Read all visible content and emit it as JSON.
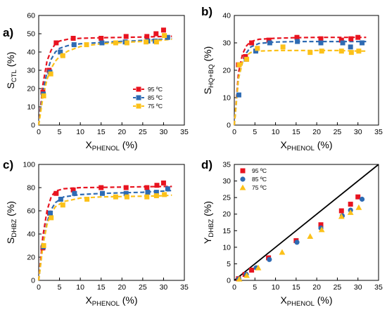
{
  "colors": {
    "t95": "#e8131f",
    "t85": "#2e6bb3",
    "t75": "#fcc119"
  },
  "chart_data": [
    {
      "type": "scatter",
      "panel": "a)",
      "ylabel_main": "S",
      "ylabel_sub": "CTL",
      "ylabel_unit": " (%)",
      "xlabel_main": "X",
      "xlabel_sub": "PHENOL",
      "xlabel_unit": " (%)",
      "xlim": [
        0,
        35
      ],
      "ylim": [
        0,
        60
      ],
      "xticks": [
        0,
        5,
        10,
        15,
        20,
        25,
        30,
        35
      ],
      "yticks": [
        0,
        10,
        20,
        30,
        40,
        50,
        60
      ],
      "legend": {
        "placement": "bottom-right"
      },
      "series": [
        {
          "name": "95 ºC",
          "color": "t95",
          "marker": "square",
          "points": [
            [
              1.0,
              18
            ],
            [
              2.5,
              30
            ],
            [
              4.2,
              45
            ],
            [
              8.3,
              47.5
            ],
            [
              15.0,
              47.5
            ],
            [
              21.0,
              48.5
            ],
            [
              26.0,
              48.5
            ],
            [
              28.2,
              50
            ],
            [
              30.0,
              52
            ]
          ],
          "fit": [
            [
              0,
              0
            ],
            [
              1,
              22
            ],
            [
              2,
              35
            ],
            [
              3,
              41
            ],
            [
              4,
              44.5
            ],
            [
              5,
              46
            ],
            [
              7,
              47
            ],
            [
              10,
              47.5
            ],
            [
              15,
              47.8
            ],
            [
              20,
              48
            ],
            [
              25,
              48.2
            ],
            [
              30,
              48.5
            ],
            [
              32,
              48.6
            ]
          ]
        },
        {
          "name": "85 ºC",
          "color": "t85",
          "marker": "square",
          "points": [
            [
              1.1,
              17
            ],
            [
              2.7,
              29
            ],
            [
              5.2,
              40
            ],
            [
              8.5,
              44
            ],
            [
              15.2,
              45
            ],
            [
              20.8,
              45.5
            ],
            [
              26.2,
              46
            ],
            [
              28.0,
              46
            ],
            [
              31.0,
              48
            ]
          ],
          "fit": [
            [
              0,
              0
            ],
            [
              1,
              18
            ],
            [
              2,
              29
            ],
            [
              3,
              36
            ],
            [
              4,
              40
            ],
            [
              5,
              42
            ],
            [
              7,
              43.5
            ],
            [
              10,
              44.5
            ],
            [
              15,
              45.2
            ],
            [
              20,
              45.8
            ],
            [
              25,
              46.3
            ],
            [
              30,
              47
            ],
            [
              32,
              47.5
            ]
          ]
        },
        {
          "name": "75 ºC",
          "color": "t75",
          "marker": "square",
          "points": [
            [
              1.2,
              16
            ],
            [
              2.9,
              28
            ],
            [
              5.8,
              38
            ],
            [
              11.5,
              44
            ],
            [
              18.5,
              45
            ],
            [
              21.2,
              45
            ],
            [
              25.8,
              45.5
            ],
            [
              28.3,
              45.5
            ],
            [
              30.2,
              49
            ]
          ],
          "fit": [
            [
              0,
              0
            ],
            [
              1,
              15
            ],
            [
              2,
              25
            ],
            [
              3,
              31
            ],
            [
              4,
              35
            ],
            [
              5,
              37.5
            ],
            [
              7,
              40.5
            ],
            [
              10,
              43
            ],
            [
              15,
              44.5
            ],
            [
              20,
              45.2
            ],
            [
              25,
              45.8
            ],
            [
              30,
              46.5
            ],
            [
              32,
              47
            ]
          ]
        }
      ]
    },
    {
      "type": "scatter",
      "panel": "b)",
      "ylabel_main": "S",
      "ylabel_sub": "HQ+BQ",
      "ylabel_unit": " (%)",
      "xlabel_main": "X",
      "xlabel_sub": "PHENOL",
      "xlabel_unit": " (%)",
      "xlim": [
        0,
        35
      ],
      "ylim": [
        0,
        40
      ],
      "xticks": [
        0,
        5,
        10,
        15,
        20,
        25,
        30,
        35
      ],
      "yticks": [
        0,
        10,
        20,
        30,
        40
      ],
      "series": [
        {
          "name": "95 ºC",
          "color": "t95",
          "marker": "square",
          "points": [
            [
              1.0,
              22
            ],
            [
              2.7,
              25
            ],
            [
              4.2,
              30
            ],
            [
              8.4,
              31
            ],
            [
              15.2,
              32
            ],
            [
              21.0,
              31.5
            ],
            [
              26.0,
              31
            ],
            [
              28.3,
              31.5
            ],
            [
              30.0,
              32
            ]
          ],
          "fit": [
            [
              0,
              0
            ],
            [
              1,
              19
            ],
            [
              2,
              26
            ],
            [
              3,
              29
            ],
            [
              4,
              30.5
            ],
            [
              6,
              31.3
            ],
            [
              10,
              31.7
            ],
            [
              15,
              31.9
            ],
            [
              20,
              32
            ],
            [
              25,
              32
            ],
            [
              30,
              32
            ],
            [
              32,
              32
            ]
          ]
        },
        {
          "name": "85 ºC",
          "color": "t85",
          "marker": "square",
          "points": [
            [
              1.1,
              11
            ],
            [
              2.9,
              24
            ],
            [
              5.2,
              27
            ],
            [
              8.6,
              30
            ],
            [
              15.3,
              30.5
            ],
            [
              21.0,
              30
            ],
            [
              26.3,
              30
            ],
            [
              28.2,
              28.5
            ],
            [
              31.0,
              30
            ]
          ],
          "fit": [
            [
              0,
              0
            ],
            [
              1,
              17
            ],
            [
              2,
              23
            ],
            [
              3,
              26.5
            ],
            [
              4,
              28.5
            ],
            [
              6,
              29.8
            ],
            [
              10,
              30.3
            ],
            [
              15,
              30.5
            ],
            [
              20,
              30.5
            ],
            [
              25,
              30.5
            ],
            [
              30,
              30.5
            ],
            [
              32,
              30.5
            ]
          ]
        },
        {
          "name": "75 ºC",
          "color": "t75",
          "marker": "square",
          "points": [
            [
              1.2,
              22
            ],
            [
              3.0,
              24
            ],
            [
              5.6,
              28
            ],
            [
              11.8,
              28.5
            ],
            [
              18.4,
              26.5
            ],
            [
              21.2,
              27
            ],
            [
              26.0,
              27
            ],
            [
              28.4,
              26.5
            ],
            [
              30.2,
              27
            ]
          ],
          "fit": [
            [
              0,
              0
            ],
            [
              1,
              17
            ],
            [
              2,
              23
            ],
            [
              3,
              25.5
            ],
            [
              4,
              26.5
            ],
            [
              6,
              27
            ],
            [
              10,
              27.2
            ],
            [
              15,
              27.2
            ],
            [
              20,
              27.2
            ],
            [
              25,
              27.2
            ],
            [
              30,
              27
            ],
            [
              32,
              27
            ]
          ]
        }
      ]
    },
    {
      "type": "scatter",
      "panel": "c)",
      "ylabel_main": "S",
      "ylabel_sub": "DHBZ",
      "ylabel_unit": " (%)",
      "xlabel_main": "X",
      "xlabel_sub": "PHENOL",
      "xlabel_unit": " (%)",
      "xlim": [
        0,
        35
      ],
      "ylim": [
        0,
        100
      ],
      "xticks": [
        0,
        5,
        10,
        15,
        20,
        25,
        30,
        35
      ],
      "yticks": [
        0,
        20,
        40,
        60,
        80,
        100
      ],
      "series": [
        {
          "name": "95 ºC",
          "color": "t95",
          "marker": "square",
          "points": [
            [
              1.0,
              28
            ],
            [
              2.6,
              58
            ],
            [
              4.2,
              75
            ],
            [
              8.3,
              78
            ],
            [
              15.0,
              80
            ],
            [
              21.0,
              80
            ],
            [
              26.0,
              80
            ],
            [
              28.4,
              82
            ],
            [
              30.0,
              84
            ]
          ],
          "fit": [
            [
              0,
              0
            ],
            [
              1,
              38
            ],
            [
              2,
              60
            ],
            [
              3,
              72
            ],
            [
              4,
              77
            ],
            [
              6,
              79
            ],
            [
              10,
              80
            ],
            [
              15,
              80.2
            ],
            [
              20,
              80.5
            ],
            [
              25,
              80.7
            ],
            [
              30,
              81
            ],
            [
              32,
              81
            ]
          ]
        },
        {
          "name": "85 ºC",
          "color": "t85",
          "marker": "square",
          "points": [
            [
              1.1,
              29
            ],
            [
              2.8,
              58
            ],
            [
              5.3,
              70
            ],
            [
              8.6,
              75
            ],
            [
              15.3,
              75
            ],
            [
              21.0,
              75
            ],
            [
              26.2,
              76
            ],
            [
              28.3,
              76
            ],
            [
              31.0,
              79
            ]
          ],
          "fit": [
            [
              0,
              0
            ],
            [
              1,
              30
            ],
            [
              2,
              50
            ],
            [
              3,
              61
            ],
            [
              4,
              67
            ],
            [
              6,
              72
            ],
            [
              10,
              74
            ],
            [
              15,
              75
            ],
            [
              20,
              75.5
            ],
            [
              25,
              76
            ],
            [
              30,
              77
            ],
            [
              32,
              77.5
            ]
          ]
        },
        {
          "name": "75 ºC",
          "color": "t75",
          "marker": "square",
          "points": [
            [
              1.2,
              30
            ],
            [
              3.0,
              54
            ],
            [
              5.8,
              65
            ],
            [
              11.6,
              70
            ],
            [
              18.5,
              72
            ],
            [
              21.2,
              72
            ],
            [
              26.0,
              72
            ],
            [
              28.3,
              73
            ],
            [
              30.2,
              74
            ]
          ],
          "fit": [
            [
              0,
              0
            ],
            [
              1,
              30
            ],
            [
              2,
              48
            ],
            [
              3,
              58
            ],
            [
              4,
              63.5
            ],
            [
              6,
              68
            ],
            [
              10,
              71
            ],
            [
              15,
              72
            ],
            [
              20,
              72.3
            ],
            [
              25,
              72.6
            ],
            [
              30,
              73
            ],
            [
              32,
              73.5
            ]
          ]
        }
      ]
    },
    {
      "type": "scatter",
      "panel": "d)",
      "ylabel_main": "Y",
      "ylabel_sub": "DHBZ",
      "ylabel_unit": " (%)",
      "xlabel_main": "X",
      "xlabel_sub": "PHENOL",
      "xlabel_unit": " (%)",
      "xlim": [
        0,
        35
      ],
      "ylim": [
        0,
        35
      ],
      "xticks": [
        0,
        5,
        10,
        15,
        20,
        25,
        30,
        35
      ],
      "yticks": [
        0,
        5,
        10,
        15,
        20,
        25,
        30,
        35
      ],
      "legend": {
        "placement": "top-left"
      },
      "reference_line": [
        [
          0,
          0
        ],
        [
          35,
          35
        ]
      ],
      "series": [
        {
          "name": "95 ºC",
          "color": "t95",
          "marker": "square",
          "points": [
            [
              1.0,
              0.5
            ],
            [
              2.6,
              1.8
            ],
            [
              4.2,
              3.1
            ],
            [
              8.3,
              6.8
            ],
            [
              15.0,
              12
            ],
            [
              21.0,
              16.8
            ],
            [
              26.0,
              21
            ],
            [
              28.2,
              23
            ],
            [
              30.0,
              25.2
            ]
          ],
          "fit": []
        },
        {
          "name": "85 ºC",
          "color": "t85",
          "marker": "circle",
          "points": [
            [
              1.1,
              0.4
            ],
            [
              2.9,
              1.8
            ],
            [
              5.3,
              3.8
            ],
            [
              8.5,
              6.3
            ],
            [
              15.2,
              11.5
            ],
            [
              21.0,
              15.8
            ],
            [
              26.2,
              19.5
            ],
            [
              28.2,
              21.2
            ],
            [
              31.0,
              24.5
            ]
          ],
          "fit": []
        },
        {
          "name": "75 ºC",
          "color": "t75",
          "marker": "triangle",
          "points": [
            [
              1.2,
              0.4
            ],
            [
              3.0,
              1.5
            ],
            [
              5.8,
              3.8
            ],
            [
              11.6,
              8.5
            ],
            [
              18.4,
              13.3
            ],
            [
              21.2,
              15.3
            ],
            [
              26.0,
              19.3
            ],
            [
              28.2,
              20.5
            ],
            [
              30.2,
              22
            ]
          ],
          "fit": []
        }
      ]
    }
  ]
}
